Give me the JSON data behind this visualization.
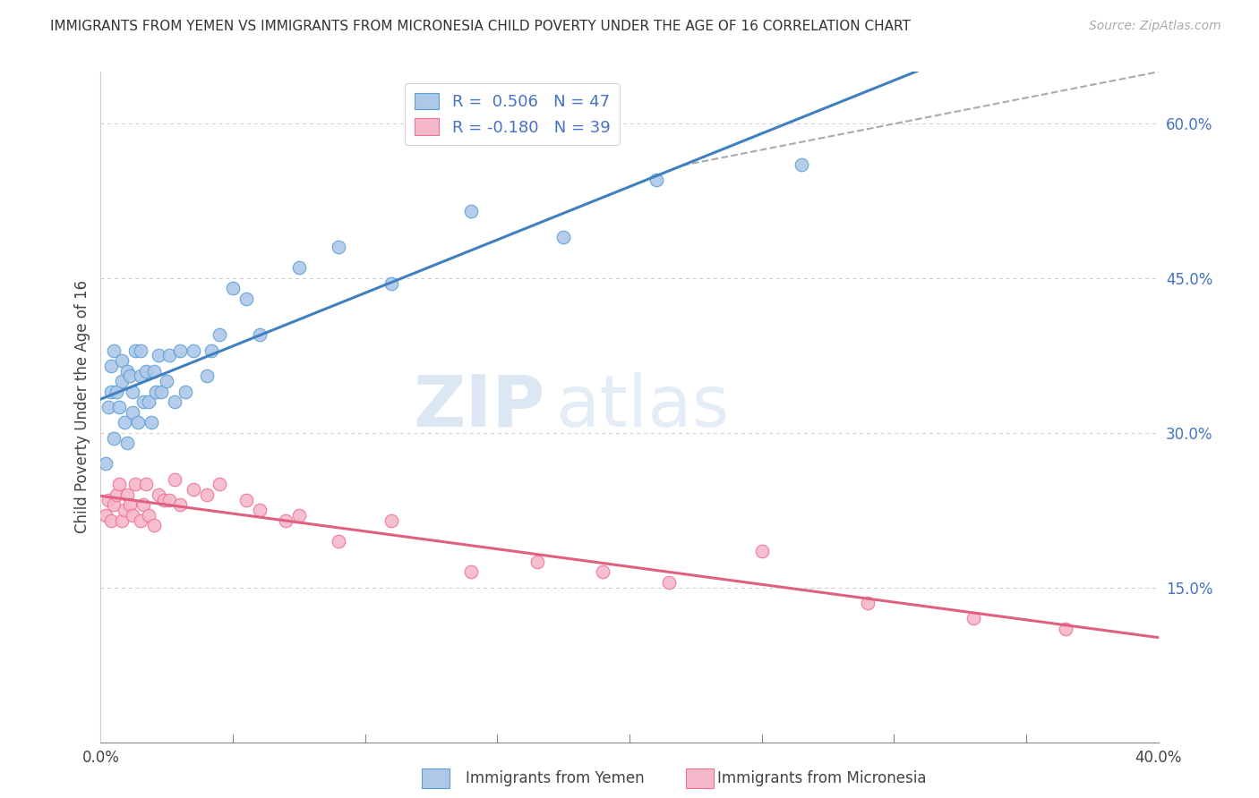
{
  "title": "IMMIGRANTS FROM YEMEN VS IMMIGRANTS FROM MICRONESIA CHILD POVERTY UNDER THE AGE OF 16 CORRELATION CHART",
  "source": "Source: ZipAtlas.com",
  "ylabel": "Child Poverty Under the Age of 16",
  "ylim": [
    0.0,
    0.65
  ],
  "xlim": [
    0.0,
    0.4
  ],
  "yticks": [
    0.15,
    0.3,
    0.45,
    0.6
  ],
  "ytick_labels": [
    "15.0%",
    "30.0%",
    "45.0%",
    "60.0%"
  ],
  "legend1_label": "R =  0.506   N = 47",
  "legend2_label": "R = -0.180   N = 39",
  "yemen_color": "#adc8e8",
  "micronesia_color": "#f5b8ca",
  "yemen_edge_color": "#5a9fd4",
  "micronesia_edge_color": "#f07090",
  "yemen_line_color": "#4080c0",
  "micronesia_line_color": "#e06080",
  "watermark_zip": "ZIP",
  "watermark_atlas": "atlas",
  "yemen_scatter_x": [
    0.002,
    0.003,
    0.004,
    0.004,
    0.005,
    0.005,
    0.006,
    0.007,
    0.008,
    0.008,
    0.009,
    0.01,
    0.01,
    0.011,
    0.012,
    0.012,
    0.013,
    0.014,
    0.015,
    0.015,
    0.016,
    0.017,
    0.018,
    0.019,
    0.02,
    0.021,
    0.022,
    0.023,
    0.025,
    0.026,
    0.028,
    0.03,
    0.032,
    0.035,
    0.04,
    0.042,
    0.045,
    0.05,
    0.055,
    0.06,
    0.075,
    0.09,
    0.11,
    0.14,
    0.175,
    0.21,
    0.265
  ],
  "yemen_scatter_y": [
    0.27,
    0.325,
    0.34,
    0.365,
    0.295,
    0.38,
    0.34,
    0.325,
    0.35,
    0.37,
    0.31,
    0.36,
    0.29,
    0.355,
    0.32,
    0.34,
    0.38,
    0.31,
    0.355,
    0.38,
    0.33,
    0.36,
    0.33,
    0.31,
    0.36,
    0.34,
    0.375,
    0.34,
    0.35,
    0.375,
    0.33,
    0.38,
    0.34,
    0.38,
    0.355,
    0.38,
    0.395,
    0.44,
    0.43,
    0.395,
    0.46,
    0.48,
    0.445,
    0.515,
    0.49,
    0.545,
    0.56
  ],
  "micronesia_scatter_x": [
    0.002,
    0.003,
    0.004,
    0.005,
    0.006,
    0.007,
    0.008,
    0.009,
    0.01,
    0.011,
    0.012,
    0.013,
    0.015,
    0.016,
    0.017,
    0.018,
    0.02,
    0.022,
    0.024,
    0.026,
    0.028,
    0.03,
    0.035,
    0.04,
    0.045,
    0.055,
    0.06,
    0.07,
    0.075,
    0.09,
    0.11,
    0.14,
    0.165,
    0.19,
    0.215,
    0.25,
    0.29,
    0.33,
    0.365
  ],
  "micronesia_scatter_y": [
    0.22,
    0.235,
    0.215,
    0.23,
    0.24,
    0.25,
    0.215,
    0.225,
    0.24,
    0.23,
    0.22,
    0.25,
    0.215,
    0.23,
    0.25,
    0.22,
    0.21,
    0.24,
    0.235,
    0.235,
    0.255,
    0.23,
    0.245,
    0.24,
    0.25,
    0.235,
    0.225,
    0.215,
    0.22,
    0.195,
    0.215,
    0.165,
    0.175,
    0.165,
    0.155,
    0.185,
    0.135,
    0.12,
    0.11
  ],
  "background_color": "#ffffff",
  "grid_color": "#cccccc"
}
